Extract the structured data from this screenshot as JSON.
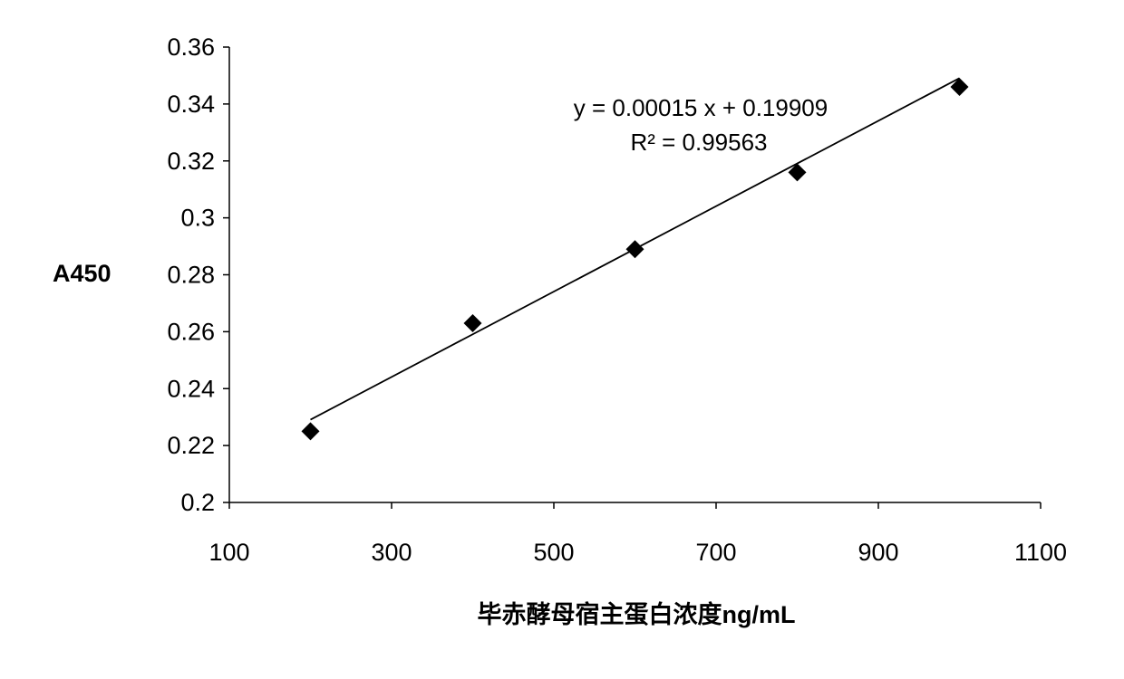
{
  "chart_data": {
    "type": "scatter",
    "title": "",
    "xlabel": "毕赤酵母宿主蛋白浓度ng/mL",
    "ylabel": "A450",
    "xlim": [
      100,
      1100
    ],
    "ylim": [
      0.2,
      0.36
    ],
    "x_ticks": [
      "100",
      "300",
      "500",
      "700",
      "900",
      "1100"
    ],
    "y_ticks": [
      "0.2",
      "0.22",
      "0.24",
      "0.26",
      "0.28",
      "0.3",
      "0.32",
      "0.34",
      "0.36"
    ],
    "grid": false,
    "legend": "none",
    "marker": "diamond",
    "marker_color": "#000000",
    "line_color": "#000000",
    "series": [
      {
        "x": [
          200,
          400,
          600,
          800,
          1000
        ],
        "y": [
          0.225,
          0.263,
          0.289,
          0.316,
          0.346
        ]
      }
    ],
    "trendline": {
      "type": "linear",
      "slope": 0.00015,
      "intercept": 0.19909,
      "x_range": [
        200,
        1000
      ]
    },
    "annotations": {
      "equation": "y = 0.00015 x + 0.19909",
      "r_squared": "R² = 0.99563"
    }
  }
}
